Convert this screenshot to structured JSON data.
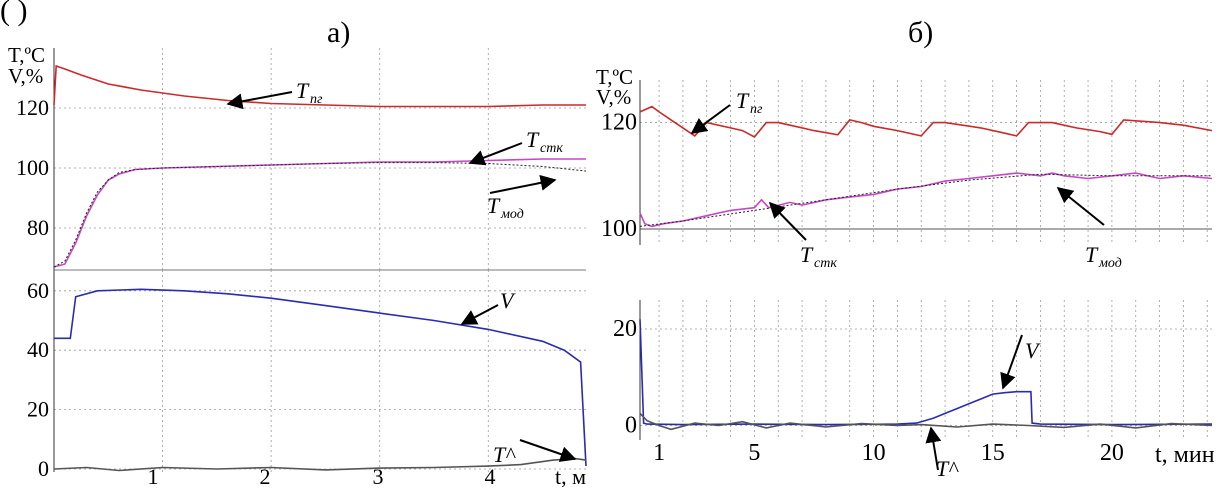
{
  "header_text": "(                                                    )",
  "chart_data": [
    {
      "type": "line",
      "panel_label": "а)",
      "ylabel_lines": [
        "T,ºC",
        "V,%"
      ],
      "xlabel": "t, м",
      "x_ticks": [
        "1",
        "2",
        "3",
        "4"
      ],
      "xlim": [
        0,
        4.9
      ],
      "grid": true,
      "colors": {
        "T_pg": "#cc2a2a",
        "T_stk": "#c847c8",
        "T_mod": "#222222",
        "V": "#2b2bb0",
        "T_hat": "#555555"
      },
      "subplots": [
        {
          "name": "temperature",
          "y_ticks": [
            "120",
            "100",
            "80"
          ],
          "ylim": [
            66,
            140
          ],
          "series": [
            {
              "key": "T_pg",
              "x": [
                0,
                0.02,
                0.1,
                0.25,
                0.5,
                0.8,
                1.2,
                1.6,
                2.0,
                2.5,
                3.0,
                3.5,
                4.0,
                4.5,
                4.9
              ],
              "y": [
                121,
                134,
                133,
                131,
                128,
                126,
                124,
                122.5,
                121.5,
                121,
                120.5,
                120.5,
                120.5,
                121,
                121
              ]
            },
            {
              "key": "T_stk",
              "x": [
                0,
                0.1,
                0.2,
                0.3,
                0.4,
                0.5,
                0.6,
                0.75,
                1.0,
                1.5,
                2.0,
                2.5,
                3.0,
                3.5,
                4.0,
                4.5,
                4.9
              ],
              "y": [
                67,
                68,
                75,
                84,
                91,
                96,
                98,
                99.5,
                100,
                100.5,
                101,
                101.5,
                102,
                102,
                102.5,
                103,
                103
              ]
            },
            {
              "key": "T_mod",
              "x": [
                0,
                0.1,
                0.2,
                0.3,
                0.4,
                0.5,
                0.6,
                0.75,
                1.0,
                1.5,
                2.0,
                2.5,
                3.0,
                3.5,
                4.0,
                4.5,
                4.9
              ],
              "y": [
                67,
                69,
                76,
                85,
                92,
                96,
                98.5,
                99.5,
                100,
                100.5,
                101,
                101.5,
                101.8,
                101.8,
                101.5,
                100.5,
                99
              ]
            }
          ],
          "annotations": [
            {
              "main": "T",
              "sub": "пг"
            },
            {
              "main": "T",
              "sub": "стк"
            },
            {
              "main": "T",
              "sub": "мод"
            }
          ]
        },
        {
          "name": "valve",
          "y_ticks": [
            "60",
            "40",
            "20",
            "0"
          ],
          "ylim": [
            -1,
            67
          ],
          "series": [
            {
              "key": "V",
              "x": [
                0,
                0.02,
                0.15,
                0.2,
                0.4,
                0.8,
                1.2,
                1.6,
                2.0,
                2.5,
                3.0,
                3.5,
                4.0,
                4.5,
                4.7,
                4.85,
                4.9
              ],
              "y": [
                44,
                44,
                44,
                58,
                60,
                60.5,
                60,
                59,
                57.5,
                55,
                52.5,
                50,
                47,
                43,
                40,
                36,
                1
              ]
            },
            {
              "key": "T_hat",
              "x": [
                0,
                0.3,
                0.6,
                1.0,
                1.5,
                2.0,
                2.5,
                3.0,
                3.5,
                4.0,
                4.3,
                4.6,
                4.8,
                4.9
              ],
              "y": [
                0,
                0.5,
                -0.5,
                0.5,
                0,
                0.5,
                -0.3,
                0.3,
                0.5,
                1,
                1.5,
                3,
                3.5,
                3
              ]
            }
          ],
          "annotations": [
            {
              "main": "V",
              "sub": ""
            },
            {
              "main": "T^",
              "sub": ""
            }
          ]
        }
      ]
    },
    {
      "type": "line",
      "panel_label": "б)",
      "ylabel_lines": [
        "T,ºC",
        "V,%"
      ],
      "xlabel": "t, мин",
      "x_ticks": [
        "1",
        "5",
        "10",
        "15",
        "20"
      ],
      "x_tick_values": [
        1,
        5,
        10,
        15,
        20
      ],
      "xlim": [
        0.2,
        24.2
      ],
      "grid": true,
      "subplots": [
        {
          "name": "temperature",
          "y_ticks": [
            "120",
            "100"
          ],
          "ylim": [
            97,
            128
          ],
          "series": [
            {
              "key": "T_pg",
              "x": [
                0.2,
                0.7,
                1.0,
                1.5,
                2.0,
                2.5,
                3.0,
                4.0,
                4.5,
                5.0,
                5.5,
                6.0,
                6.5,
                7.5,
                8.5,
                9.0,
                9.5,
                10.0,
                11.0,
                12.0,
                12.5,
                13.0,
                14.5,
                15.5,
                16.0,
                16.5,
                17.5,
                18.5,
                19.5,
                20.0,
                20.5,
                22.0,
                23.0,
                24.2
              ],
              "y": [
                122,
                123,
                122,
                120.5,
                119,
                117.5,
                120,
                119,
                118.5,
                117.3,
                120,
                120,
                119.5,
                118.5,
                117.7,
                120.5,
                120,
                119.3,
                118.5,
                117.5,
                120,
                120,
                119,
                118,
                117.5,
                120,
                120,
                119,
                118.3,
                117.8,
                120.5,
                120,
                119.5,
                118.5
              ]
            },
            {
              "key": "T_stk",
              "x": [
                0.2,
                0.4,
                0.7,
                1.2,
                2.0,
                3.0,
                4.0,
                5.0,
                5.3,
                5.6,
                6.5,
                7.0,
                8.0,
                9.0,
                10.0,
                11.0,
                12.0,
                13.0,
                14.0,
                15.0,
                16.0,
                17.0,
                17.5,
                18.0,
                19.0,
                20.0,
                21.0,
                22.0,
                23.0,
                24.2
              ],
              "y": [
                103,
                101,
                100.5,
                101,
                101.5,
                102.5,
                103.5,
                104,
                105.5,
                104,
                105,
                104.5,
                105.5,
                106,
                106.5,
                107.5,
                108,
                109,
                109.5,
                110,
                110.5,
                110,
                110.5,
                110,
                109.5,
                110,
                110.5,
                109.5,
                110,
                109.5
              ]
            },
            {
              "key": "T_mod",
              "x": [
                0.2,
                2.0,
                5.0,
                8.0,
                11.0,
                14.0,
                17.0,
                20.0,
                24.2
              ],
              "y": [
                100.5,
                101.5,
                103.5,
                105.5,
                107.5,
                109.2,
                110.3,
                110,
                110
              ]
            }
          ],
          "annotations": [
            {
              "main": "T",
              "sub": "пг"
            },
            {
              "main": "T",
              "sub": "мод"
            },
            {
              "main": "T",
              "sub": "стк"
            }
          ]
        },
        {
          "name": "valve",
          "y_ticks": [
            "20",
            "0"
          ],
          "ylim": [
            -3,
            26
          ],
          "series": [
            {
              "key": "V",
              "x": [
                0.2,
                0.35,
                0.5,
                2.0,
                5.0,
                8.0,
                11.0,
                11.8,
                12.5,
                13.0,
                13.5,
                14.0,
                14.5,
                15.0,
                15.5,
                16.0,
                16.6,
                16.65,
                17.0,
                20.0,
                24.2
              ],
              "y": [
                22,
                0.5,
                0.3,
                0.2,
                0.3,
                0.2,
                0.3,
                0.5,
                1.5,
                2.5,
                3.5,
                4.5,
                5.5,
                6.5,
                6.8,
                7,
                7,
                0.5,
                0.3,
                0.2,
                0.3
              ]
            },
            {
              "key": "T_hat",
              "x": [
                0.2,
                0.5,
                1.0,
                1.5,
                2.5,
                3.5,
                4.5,
                5.5,
                6.5,
                8.0,
                9.5,
                11.0,
                12.0,
                13.5,
                15.0,
                16.5,
                18.0,
                19.5,
                21.0,
                22.5,
                24.2
              ],
              "y": [
                2.5,
                1,
                0,
                -0.8,
                0.5,
                0,
                0.8,
                -0.5,
                0.5,
                -0.3,
                0.4,
                0,
                0.2,
                -0.3,
                0.3,
                0,
                -0.4,
                0.3,
                -0.5,
                0.4,
                0
              ]
            }
          ],
          "annotations": [
            {
              "main": "V",
              "sub": ""
            },
            {
              "main": "T^",
              "sub": ""
            }
          ]
        }
      ]
    }
  ]
}
